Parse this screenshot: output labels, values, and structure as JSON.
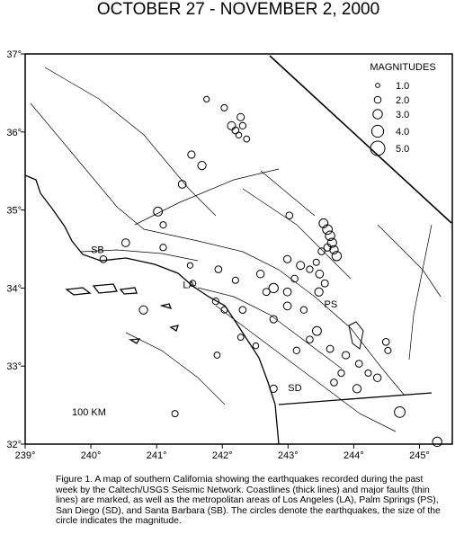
{
  "chart_data": {
    "type": "scatter",
    "title": "OCTOBER 27 - NOVEMBER 2, 2000",
    "xlim": [
      239,
      245.5
    ],
    "ylim": [
      32,
      37
    ],
    "xticks": [
      {
        "value": 239,
        "label": "239°"
      },
      {
        "value": 240,
        "label": "240°"
      },
      {
        "value": 241,
        "label": "241°"
      },
      {
        "value": 242,
        "label": "242°"
      },
      {
        "value": 243,
        "label": "243°"
      },
      {
        "value": 244,
        "label": "244°"
      },
      {
        "value": 245,
        "label": "245°"
      }
    ],
    "yticks": [
      {
        "value": 32,
        "label": "32°"
      },
      {
        "value": 33,
        "label": "33°"
      },
      {
        "value": 34,
        "label": "34°"
      },
      {
        "value": 35,
        "label": "35°"
      },
      {
        "value": 36,
        "label": "36°"
      },
      {
        "value": 37,
        "label": "37°"
      }
    ],
    "legend_title": "MAGNITUDES",
    "legend_sizes": [
      {
        "value": 1,
        "label": "1.0"
      },
      {
        "value": 2,
        "label": "2.0"
      },
      {
        "value": 3,
        "label": "3.0"
      },
      {
        "value": 4,
        "label": "4.0"
      },
      {
        "value": 5,
        "label": "5.0"
      }
    ],
    "color": "#000000",
    "x": [
      241.76,
      242.03,
      242.28,
      242.14,
      242.2,
      242.25,
      242.31,
      242.37,
      241.53,
      241.69,
      241.39,
      241.02,
      241.1,
      240.53,
      240.19,
      241.1,
      241.51,
      241.94,
      241.55,
      242.2,
      242.58,
      242.67,
      242.78,
      242.99,
      243.1,
      243.02,
      242.99,
      243.19,
      243.33,
      243.54,
      243.6,
      243.64,
      243.67,
      243.7,
      243.74,
      243.6,
      243.51,
      243.43,
      243.48,
      243.56,
      243.47,
      243.24,
      243.44,
      243.33,
      243.64,
      243.88,
      244.08,
      244.22,
      244.36,
      243.81,
      244.05,
      243.7,
      240.8,
      242.03,
      242.28,
      242.78,
      244.7,
      245.27,
      244.52,
      244.49,
      242.51,
      243.13,
      241.92,
      241.28,
      241.9,
      242.31,
      242.78,
      242.99
    ],
    "y": [
      36.42,
      36.31,
      36.19,
      36.08,
      36.02,
      35.96,
      36.08,
      35.91,
      35.71,
      35.57,
      35.33,
      34.98,
      34.81,
      34.58,
      34.37,
      34.52,
      34.29,
      34.24,
      34.06,
      34.1,
      34.18,
      33.95,
      34.0,
      33.95,
      34.12,
      34.93,
      34.37,
      34.29,
      34.24,
      34.83,
      34.75,
      34.67,
      34.58,
      34.49,
      34.41,
      34.52,
      34.47,
      34.33,
      34.18,
      34.06,
      33.95,
      33.72,
      33.45,
      33.34,
      33.22,
      33.14,
      33.03,
      32.91,
      32.85,
      32.91,
      32.71,
      32.79,
      33.72,
      33.72,
      33.37,
      32.71,
      32.41,
      32.03,
      33.2,
      33.31,
      33.26,
      33.2,
      33.14,
      32.39,
      33.83,
      33.72,
      33.6,
      33.77
    ],
    "size": [
      1.5,
      1.8,
      2.2,
      2.5,
      2.0,
      1.6,
      1.9,
      1.7,
      2.2,
      2.6,
      2.4,
      2.8,
      1.8,
      2.4,
      2.0,
      1.9,
      1.5,
      2.0,
      1.7,
      1.8,
      2.3,
      2.1,
      3.0,
      2.4,
      2.0,
      2.0,
      2.2,
      2.5,
      1.9,
      2.8,
      3.1,
      3.0,
      2.9,
      2.6,
      3.0,
      2.2,
      2.0,
      1.8,
      2.4,
      2.1,
      2.6,
      1.9,
      2.8,
      2.0,
      2.1,
      2.2,
      2.0,
      1.8,
      2.3,
      1.9,
      2.6,
      2.0,
      2.6,
      1.8,
      1.7,
      2.2,
      3.5,
      3.0,
      1.8,
      2.0,
      1.6,
      1.9,
      1.7,
      1.8,
      1.9,
      2.0,
      2.2,
      2.4
    ],
    "place_labels": [
      {
        "label": "SB",
        "lon": 240.0,
        "lat": 34.45
      },
      {
        "label": "LA",
        "lon": 241.4,
        "lat": 34.0
      },
      {
        "label": "PS",
        "lon": 243.55,
        "lat": 33.75
      },
      {
        "label": "SD",
        "lon": 243.0,
        "lat": 32.68
      }
    ],
    "scale_label": "100 KM",
    "caption": "Figure 1. A map of southern California showing the earthquakes recorded during the past week by the Caltech/USGS Seismic Network. Coastlines (thick lines) and major faults (thin lines) are marked, as well as the metropolitan areas of Los Angeles (LA), Palm Springs (PS), San Diego (SD), and Santa Barbara (SB). The circles denote the earthquakes, the size of the circle indicates the magnitude."
  }
}
